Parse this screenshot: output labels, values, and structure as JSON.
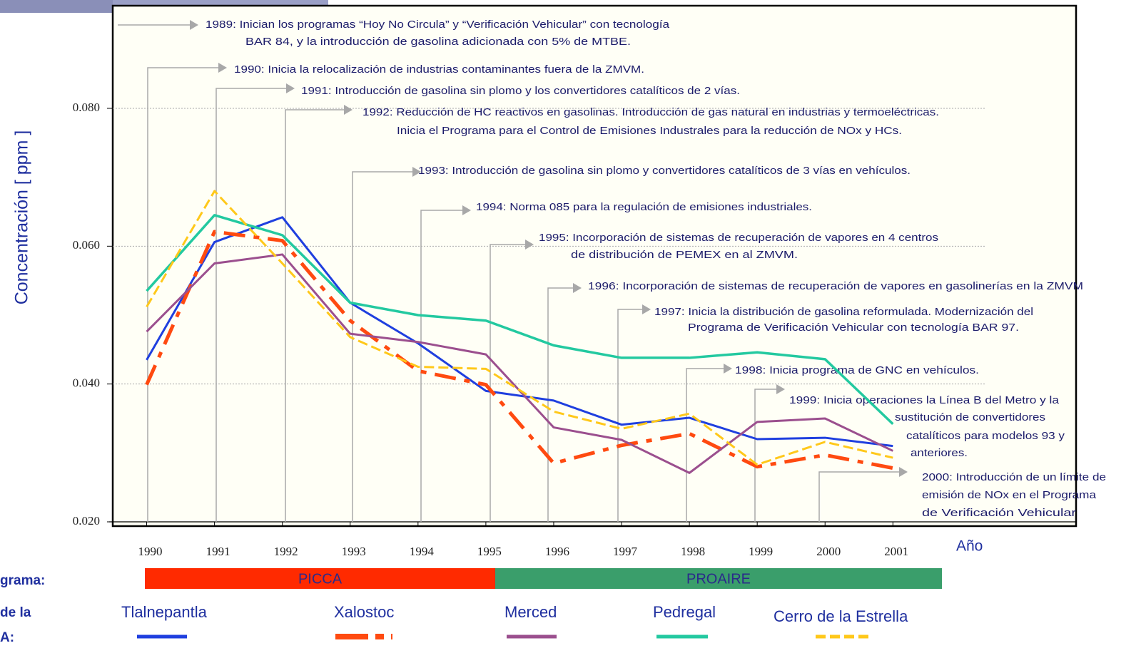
{
  "chart_data": {
    "type": "line",
    "y_label": "Concentración [ ppm ]",
    "x_label": "Año",
    "x": [
      1990,
      1991,
      1992,
      1993,
      1994,
      1995,
      1996,
      1997,
      1998,
      1999,
      2000,
      2001
    ],
    "xlim": [
      1989.5,
      2003.7
    ],
    "xticks": [
      1990,
      1991,
      1992,
      1993,
      1994,
      1995,
      1996,
      1997,
      1998,
      1999,
      2000,
      2001
    ],
    "ylim": [
      0.02,
      0.095
    ],
    "yticks": [
      {
        "value": 0.02,
        "label": "0.020"
      },
      {
        "value": 0.04,
        "label": "0.040"
      },
      {
        "value": 0.06,
        "label": "0.060"
      },
      {
        "value": 0.08,
        "label": "0.080"
      }
    ],
    "grid": true,
    "series": [
      {
        "name": "Tlalnepantla",
        "color": "#1f3fdf",
        "style": "solid",
        "values": [
          0.0435,
          0.0606,
          0.0642,
          0.0518,
          0.0459,
          0.039,
          0.0376,
          0.0341,
          0.0351,
          0.032,
          0.0322,
          0.031
        ]
      },
      {
        "name": "Xalostoc",
        "color": "#ff4a10",
        "style": "dashdot",
        "values": [
          0.0399,
          0.0621,
          0.0608,
          0.0492,
          0.0419,
          0.0399,
          0.0285,
          0.0311,
          0.0328,
          0.028,
          0.0297,
          0.0278
        ]
      },
      {
        "name": "Merced",
        "color": "#9b4f8e",
        "style": "solid",
        "values": [
          0.0476,
          0.0575,
          0.0588,
          0.0473,
          0.0461,
          0.0443,
          0.0337,
          0.0319,
          0.0271,
          0.0345,
          0.035,
          0.0303
        ]
      },
      {
        "name": "Pedregal",
        "color": "#23c9a0",
        "style": "solid",
        "values": [
          0.0535,
          0.0645,
          0.0616,
          0.0518,
          0.05,
          0.0492,
          0.0456,
          0.0438,
          0.0438,
          0.0446,
          0.0436,
          0.0342
        ]
      },
      {
        "name": "Cerro de la Estrella",
        "color": "#ffc81a",
        "style": "dashed",
        "values": [
          0.0512,
          0.068,
          0.0575,
          0.0468,
          0.0425,
          0.0422,
          0.036,
          0.0335,
          0.0357,
          0.0283,
          0.0316,
          0.0293
        ]
      }
    ],
    "annotations": [
      {
        "lines": [
          "1989: Inician los programas “Hoy No Circula” y  “Verificación Vehicular” con tecnología",
          "BAR 84, y la introducción de gasolina adicionada con 5% de MTBE."
        ]
      },
      {
        "lines": [
          "1990: Inicia la relocalización de industrias contaminantes fuera de la ZMVM."
        ]
      },
      {
        "lines": [
          "1991: Introducción de gasolina sin plomo y los convertidores catalíticos de 2 vías."
        ]
      },
      {
        "lines": [
          "1992: Reducción de HC reactivos en gasolinas. Introducción de gas natural en industrias y termoeléctricas.",
          "Inicia el Programa para el Control de Emisiones Industrales para la reducción de NOx  y HCs."
        ]
      },
      {
        "lines": [
          "1993: Introducción de gasolina sin plomo y convertidores catalíticos de 3 vías en vehículos."
        ]
      },
      {
        "lines": [
          "1994: Norma 085 para la regulación de emisiones industriales."
        ]
      },
      {
        "lines": [
          "1995: Incorporación de sistemas de recuperación de vapores en 4 centros",
          "de distribución de  PEMEX en al ZMVM."
        ]
      },
      {
        "lines": [
          "1996: Incorporación de sistemas de recuperación de vapores en gasolinerías en la ZMVM"
        ]
      },
      {
        "lines": [
          "1997: Inicia la distribución de gasolina reformulada. Modernización del",
          "Programa de Verificación Vehicular con tecnología BAR 97."
        ]
      },
      {
        "lines": [
          "1998: Inicia programa de GNC  en vehículos."
        ]
      },
      {
        "lines": [
          "1999: Inicia operaciones la Línea B del Metro y  la",
          "sustitución de convertidores",
          "catalíticos para modelos 93 y",
          "anteriores."
        ]
      },
      {
        "lines": [
          "2000: Introducción de un límite de",
          "emisión de NOx en el Programa",
          "de Verificación Vehicular"
        ]
      }
    ],
    "programs_label": "grama:",
    "programs": [
      "PICCA",
      "PROAIRE"
    ],
    "stations_label": [
      "de la",
      "A:"
    ]
  }
}
